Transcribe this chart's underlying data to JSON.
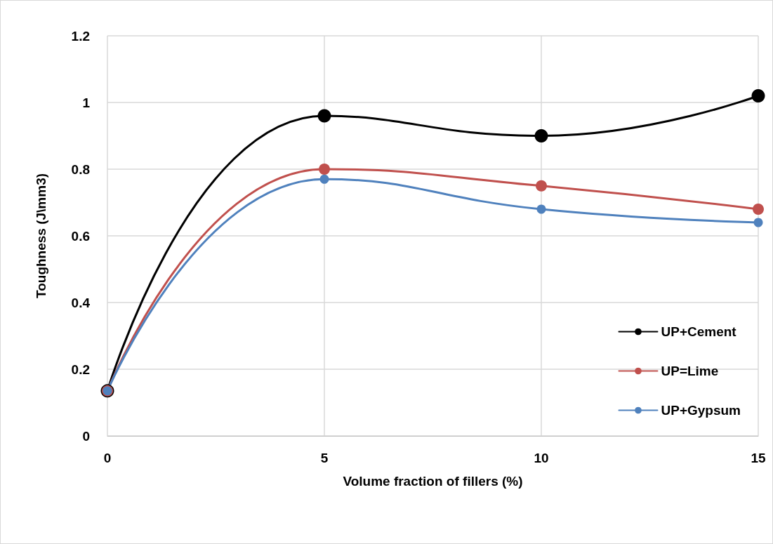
{
  "chart_data": {
    "type": "line",
    "xlabel": "Volume fraction of fillers (%)",
    "ylabel": "Toughness (J\\mm3)",
    "x": [
      0,
      5,
      10,
      15
    ],
    "series": [
      {
        "name": "UP+Cement",
        "color": "#000000",
        "values": [
          0.135,
          0.96,
          0.9,
          1.02
        ]
      },
      {
        "name": "UP=Lime",
        "color": "#c0504d",
        "values": [
          0.135,
          0.8,
          0.75,
          0.68
        ]
      },
      {
        "name": "UP+Gypsum",
        "color": "#4f81bd",
        "values": [
          0.135,
          0.77,
          0.68,
          0.64
        ]
      }
    ],
    "xlim": [
      0,
      15
    ],
    "xticks": [
      0,
      5,
      10,
      15
    ],
    "ylim": [
      0,
      1.2
    ],
    "yticks": [
      0,
      0.2,
      0.4,
      0.6,
      0.8,
      1,
      1.2
    ],
    "grid": true,
    "legend": "bottom right",
    "marker": "circle",
    "line_style": "solid"
  }
}
